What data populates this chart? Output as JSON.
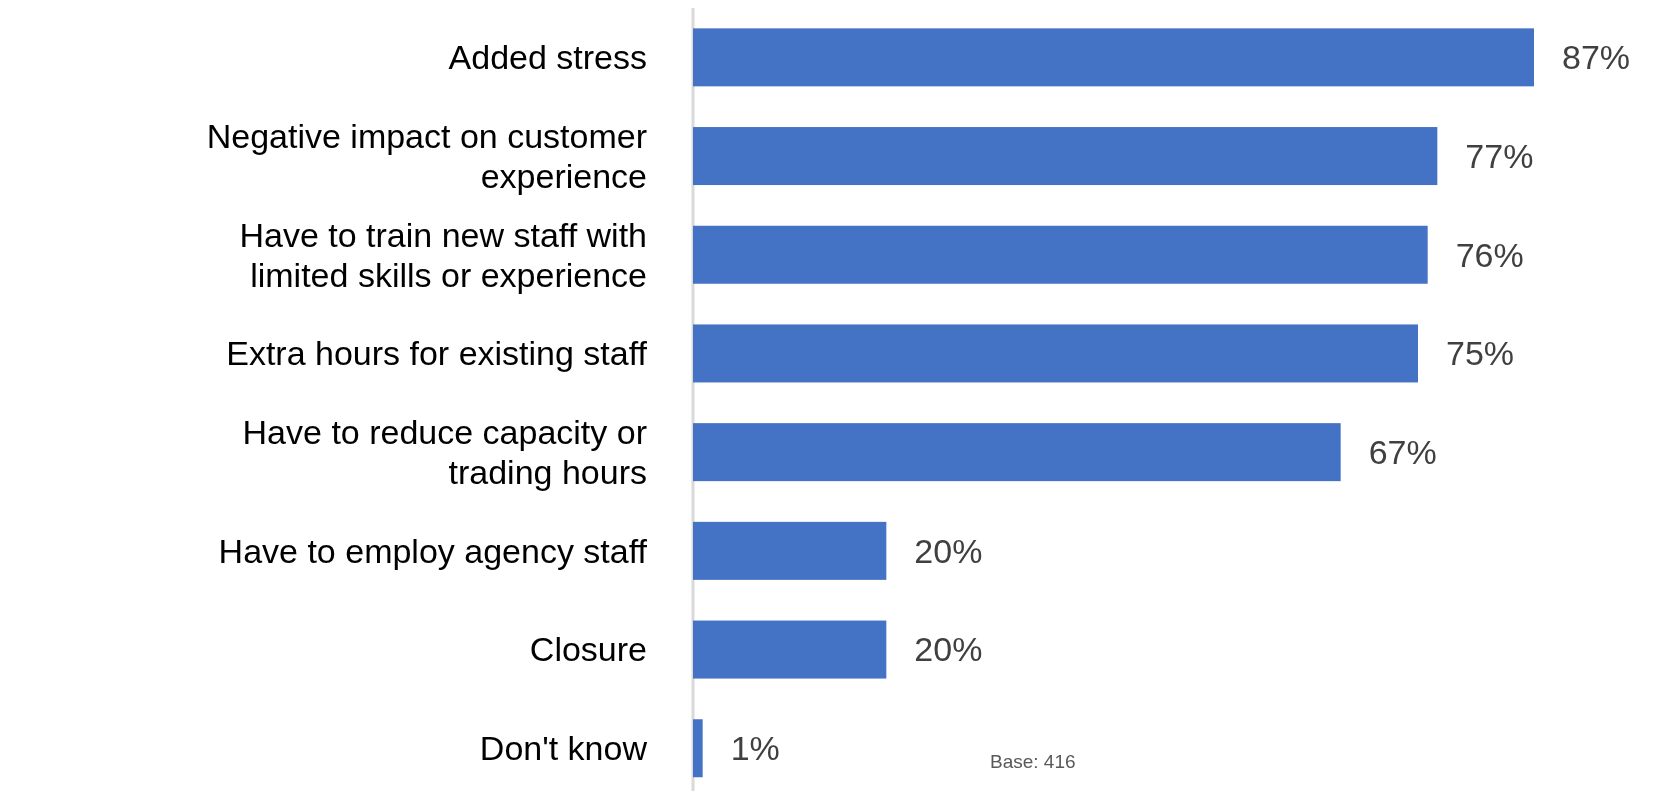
{
  "chart_data": {
    "type": "bar",
    "orientation": "horizontal",
    "categories": [
      "Added stress",
      "Negative impact on customer experience",
      "Have to train new staff with limited skills or experience",
      "Extra hours for existing staff",
      "Have to reduce capacity or trading hours",
      "Have to employ agency staff",
      "Closure",
      "Don't know"
    ],
    "values": [
      87,
      77,
      76,
      75,
      67,
      20,
      20,
      1
    ],
    "value_labels": [
      "87%",
      "77%",
      "76%",
      "75%",
      "67%",
      "20%",
      "20%",
      "1%"
    ],
    "color": "#4472c4",
    "annotations": [
      "Base: 416"
    ]
  }
}
